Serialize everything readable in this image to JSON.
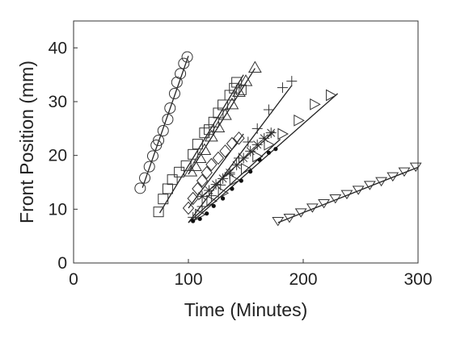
{
  "chart_data": {
    "type": "scatter",
    "title": "",
    "xlabel": "Time (Minutes)",
    "ylabel": "Front Position (mm)",
    "xlim": [
      0,
      300
    ],
    "ylim": [
      0,
      45
    ],
    "xticks": [
      0,
      100,
      200,
      300
    ],
    "yticks": [
      0,
      10,
      20,
      30,
      40
    ],
    "grid": false,
    "legend": "none",
    "series": [
      {
        "marker": "circle",
        "fit": [
          [
            60,
            14
          ],
          [
            100,
            38.5
          ]
        ],
        "points": [
          [
            58,
            13.9
          ],
          [
            62,
            15.8
          ],
          [
            66,
            17.9
          ],
          [
            69,
            19.9
          ],
          [
            72,
            21.9
          ],
          [
            74,
            22.8
          ],
          [
            78,
            24.6
          ],
          [
            82,
            26.7
          ],
          [
            84,
            28.8
          ],
          [
            88,
            31.5
          ],
          [
            90,
            33.6
          ],
          [
            93,
            35.2
          ],
          [
            96,
            37.1
          ],
          [
            99,
            38.3
          ]
        ]
      },
      {
        "marker": "square",
        "fit": [
          [
            75,
            9.3
          ],
          [
            148,
            35
          ]
        ],
        "points": [
          [
            74,
            9.5
          ],
          [
            78,
            11.9
          ],
          [
            82,
            13.8
          ],
          [
            86,
            15.5
          ],
          [
            92,
            16.9
          ],
          [
            98,
            18.1
          ],
          [
            104,
            20.2
          ],
          [
            108,
            22.1
          ],
          [
            114,
            24.2
          ],
          [
            118,
            24.8
          ],
          [
            122,
            26.2
          ],
          [
            126,
            27.9
          ],
          [
            130,
            29.4
          ],
          [
            136,
            31.2
          ],
          [
            140,
            32.5
          ],
          [
            142,
            33.6
          ],
          [
            146,
            32.2
          ]
        ]
      },
      {
        "marker": "triangle-up",
        "fit": [
          [
            100,
            16.5
          ],
          [
            158,
            36.2
          ]
        ],
        "points": [
          [
            102,
            17
          ],
          [
            106,
            18
          ],
          [
            110,
            19.5
          ],
          [
            114,
            21
          ],
          [
            120,
            23.5
          ],
          [
            126,
            25.2
          ],
          [
            132,
            27.5
          ],
          [
            138,
            29.5
          ],
          [
            144,
            31.8
          ],
          [
            150,
            33.8
          ],
          [
            158,
            36.3
          ]
        ]
      },
      {
        "marker": "diamond",
        "fit": [
          [
            100,
            10.2
          ],
          [
            148,
            24
          ]
        ],
        "points": [
          [
            100,
            10.2
          ],
          [
            104,
            12
          ],
          [
            108,
            13.8
          ],
          [
            112,
            15.3
          ],
          [
            116,
            16.8
          ],
          [
            120,
            18.3
          ],
          [
            126,
            19.5
          ],
          [
            132,
            20.8
          ],
          [
            138,
            22.2
          ],
          [
            144,
            23.2
          ]
        ]
      },
      {
        "marker": "plus",
        "fit": [
          [
            100,
            7.5
          ],
          [
            190,
            33
          ]
        ],
        "points": [
          [
            104,
            8.5
          ],
          [
            112,
            10.5
          ],
          [
            120,
            12.5
          ],
          [
            128,
            14.5
          ],
          [
            136,
            16.5
          ],
          [
            144,
            19.5
          ],
          [
            152,
            22.5
          ],
          [
            160,
            25
          ],
          [
            170,
            28.5
          ],
          [
            182,
            32.6
          ],
          [
            190,
            33.8
          ]
        ]
      },
      {
        "marker": "asterisk",
        "fit": [
          [
            110,
            12
          ],
          [
            175,
            24.5
          ]
        ],
        "points": [
          [
            112,
            12.4
          ],
          [
            118,
            13.5
          ],
          [
            124,
            14.6
          ],
          [
            130,
            15.7
          ],
          [
            136,
            16.8
          ],
          [
            142,
            18.2
          ],
          [
            148,
            19.5
          ],
          [
            154,
            20.8
          ],
          [
            160,
            22
          ],
          [
            166,
            23.2
          ],
          [
            172,
            24.2
          ]
        ]
      },
      {
        "marker": "triangle-right",
        "fit": [
          [
            105,
            8
          ],
          [
            230,
            31.5
          ]
        ],
        "points": [
          [
            110,
            9
          ],
          [
            120,
            11.5
          ],
          [
            130,
            13
          ],
          [
            140,
            15.4
          ],
          [
            150,
            17.5
          ],
          [
            160,
            19.8
          ],
          [
            170,
            22
          ],
          [
            182,
            24
          ],
          [
            196,
            26.5
          ],
          [
            210,
            29.5
          ],
          [
            224,
            31.2
          ]
        ]
      },
      {
        "marker": "dot",
        "fit": [
          [
            100,
            7.5
          ],
          [
            180,
            23
          ]
        ],
        "points": [
          [
            104,
            7.8
          ],
          [
            110,
            8.2
          ],
          [
            116,
            9.2
          ],
          [
            122,
            10.6
          ],
          [
            130,
            12
          ],
          [
            138,
            13.8
          ],
          [
            146,
            15.3
          ],
          [
            154,
            17
          ],
          [
            162,
            19.2
          ],
          [
            170,
            20.5
          ],
          [
            176,
            21.2
          ]
        ]
      },
      {
        "marker": "triangle-down",
        "fit": [
          [
            178,
            7.5
          ],
          [
            300,
            17.8
          ]
        ],
        "points": [
          [
            178,
            7.8
          ],
          [
            188,
            8.4
          ],
          [
            198,
            9.4
          ],
          [
            208,
            10.3
          ],
          [
            218,
            11.1
          ],
          [
            228,
            12
          ],
          [
            238,
            12.8
          ],
          [
            248,
            13.6
          ],
          [
            258,
            14.5
          ],
          [
            268,
            15.2
          ],
          [
            278,
            16.1
          ],
          [
            288,
            17
          ],
          [
            298,
            17.9
          ]
        ]
      }
    ]
  }
}
